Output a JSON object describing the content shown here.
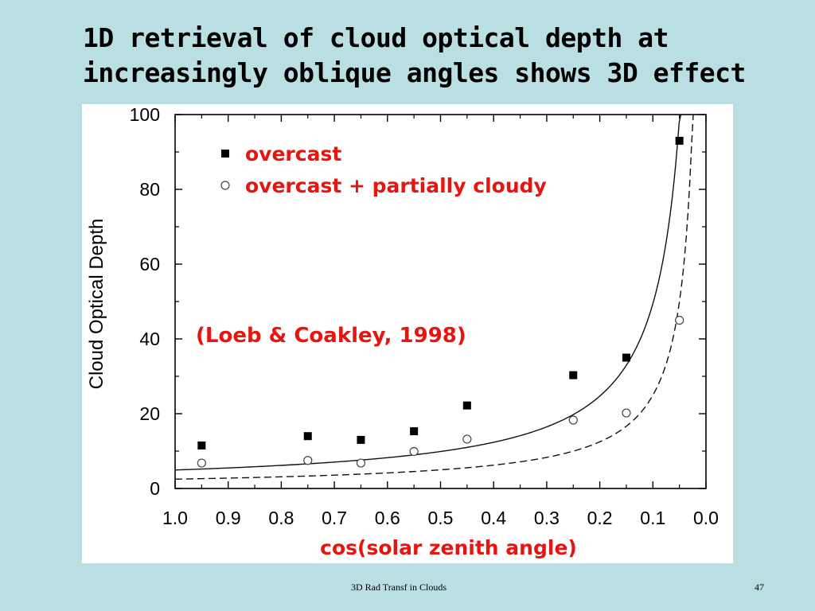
{
  "slide": {
    "title_line1": "1D retrieval of cloud optical depth at",
    "title_line2": "increasingly oblique angles shows 3D effect",
    "footer": "3D Rad Transf in Clouds",
    "page_number": "47"
  },
  "chart_data": {
    "type": "scatter",
    "xlabel": "cos(solar zenith angle)",
    "ylabel": "Cloud Optical Depth",
    "x_reversed": true,
    "xlim": [
      1.0,
      0.0
    ],
    "ylim": [
      0,
      100
    ],
    "xticks": [
      "1.0",
      "0.9",
      "0.8",
      "0.7",
      "0.6",
      "0.5",
      "0.4",
      "0.3",
      "0.2",
      "0.1",
      "0.0"
    ],
    "yticks": [
      "0",
      "20",
      "40",
      "60",
      "80",
      "100"
    ],
    "annotation": "(Loeb & Coakley, 1998)",
    "legend_position": "top-left",
    "grid": false,
    "series": [
      {
        "name": "overcast",
        "marker": "filled-square",
        "x": [
          0.95,
          0.75,
          0.65,
          0.55,
          0.45,
          0.25,
          0.15,
          0.05
        ],
        "y": [
          11.5,
          14,
          13,
          15.3,
          22.2,
          30.3,
          35,
          93
        ]
      },
      {
        "name": "overcast + partially cloudy",
        "marker": "open-circle",
        "x": [
          0.95,
          0.75,
          0.65,
          0.55,
          0.45,
          0.25,
          0.15,
          0.05
        ],
        "y": [
          6.8,
          7.5,
          6.8,
          9.9,
          13.2,
          18.3,
          20.2,
          45
        ]
      }
    ],
    "fits": [
      {
        "series": "overcast",
        "style": "solid",
        "form": "tau/mu"
      },
      {
        "series": "overcast + partially cloudy",
        "style": "dashed",
        "form": "tau/mu"
      }
    ],
    "colors": {
      "text_accent": "#e8140f",
      "axis": "#000000",
      "background": "#b9dfe3"
    }
  }
}
